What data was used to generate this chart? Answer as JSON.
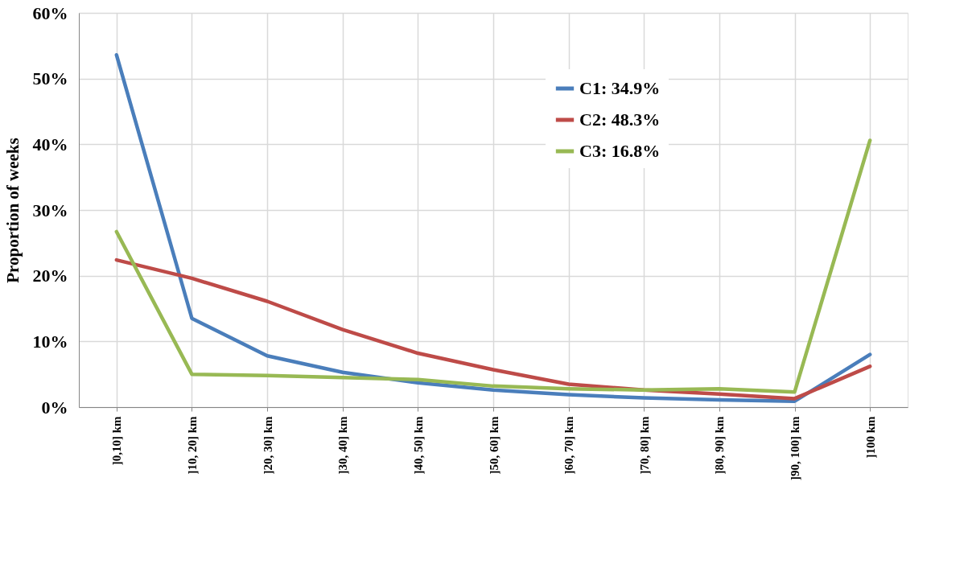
{
  "chart_data": {
    "type": "line",
    "ylabel": "Proportion of weeks",
    "categories": [
      "]0,10] km",
      "]10, 20] km",
      "]20, 30] km",
      "]30, 40] km",
      "]40, 50] km",
      "]50, 60] km",
      "]60, 70] km",
      "]70, 80] km",
      "]80, 90] km",
      "]90, 100] km",
      "]100 km"
    ],
    "series": [
      {
        "name": "C1: 34.9%",
        "color": "#4a7ebb",
        "values": [
          53.6,
          13.5,
          7.8,
          5.3,
          3.7,
          2.6,
          1.9,
          1.4,
          1.1,
          0.9,
          8.0
        ]
      },
      {
        "name": "C2: 48.3%",
        "color": "#be4b48",
        "values": [
          22.4,
          19.6,
          16.1,
          11.8,
          8.2,
          5.7,
          3.5,
          2.6,
          2.0,
          1.3,
          6.2
        ]
      },
      {
        "name": "C3: 16.8%",
        "color": "#98b954",
        "values": [
          26.7,
          5.0,
          4.8,
          4.5,
          4.2,
          3.2,
          2.8,
          2.6,
          2.8,
          2.3,
          40.6
        ]
      }
    ],
    "ylim": [
      0,
      60
    ],
    "yticks": [
      {
        "value": 0,
        "label": "0%"
      },
      {
        "value": 10,
        "label": "10%"
      },
      {
        "value": 20,
        "label": "20%"
      },
      {
        "value": 30,
        "label": "30%"
      },
      {
        "value": 40,
        "label": "40%"
      },
      {
        "value": 50,
        "label": "50%"
      },
      {
        "value": 60,
        "label": "60%"
      }
    ],
    "grid": true,
    "legend": "top right",
    "marker": "none",
    "line_style": "solid"
  }
}
